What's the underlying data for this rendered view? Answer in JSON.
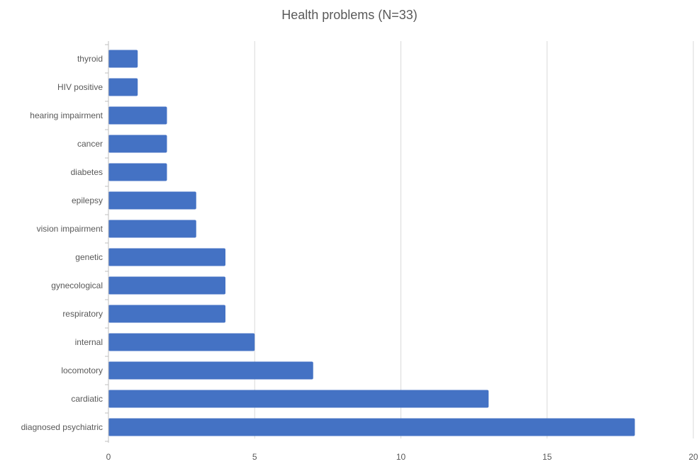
{
  "chart_data": {
    "type": "bar",
    "orientation": "horizontal",
    "title": "Health problems (N=33)",
    "categories": [
      "thyroid",
      "HIV positive",
      "hearing impairment",
      "cancer",
      "diabetes",
      "epilepsy",
      "vision impairment",
      "genetic",
      "gynecological",
      "respiratory",
      "internal",
      "locomotory",
      "cardiatic",
      "diagnosed psychiatric"
    ],
    "values": [
      1,
      1,
      2,
      2,
      2,
      3,
      3,
      4,
      4,
      4,
      5,
      7,
      13,
      18
    ],
    "xlim": [
      0,
      20
    ],
    "xticks": [
      0,
      5,
      10,
      15,
      20
    ],
    "xlabel": "",
    "ylabel": "",
    "grid": "vertical",
    "legend": "none",
    "bar_color": "#4472C4",
    "grid_color": "#D9D9D9",
    "axis_color": "#BFBFBF",
    "text_color": "#595959"
  }
}
